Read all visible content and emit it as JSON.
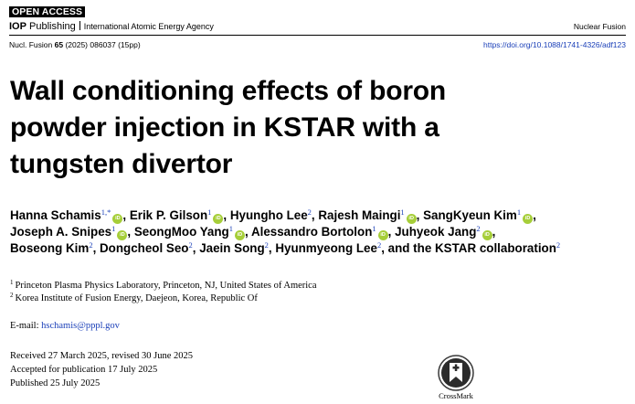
{
  "header": {
    "open_access": "OPEN ACCESS",
    "publisher_bold": "IOP",
    "publisher_rest": " Publishing",
    "agency": "International Atomic Energy Agency",
    "journal": "Nuclear Fusion"
  },
  "citation": {
    "journal_abbrev": "Nucl. Fusion ",
    "volume": "65",
    "rest": " (2025) 086037 (15pp)",
    "doi": "https://doi.org/10.1088/1741-4326/adf123"
  },
  "title_lines": [
    "Wall conditioning effects of boron",
    "powder injection in KSTAR with a",
    "tungsten divertor"
  ],
  "authors": [
    {
      "name": "Hanna Schamis",
      "aff": "1,*",
      "orcid": true
    },
    {
      "name": "Erik P. Gilson",
      "aff": "1",
      "orcid": true
    },
    {
      "name": "Hyungho Lee",
      "aff": "2",
      "orcid": false
    },
    {
      "name": "Rajesh Maingi",
      "aff": "1",
      "orcid": true
    },
    {
      "name": "SangKyeun Kim",
      "aff": "1",
      "orcid": true
    },
    {
      "name": "Joseph A. Snipes",
      "aff": "1",
      "orcid": true
    },
    {
      "name": "SeongMoo Yang",
      "aff": "1",
      "orcid": true
    },
    {
      "name": "Alessandro Bortolon",
      "aff": "1",
      "orcid": true
    },
    {
      "name": "Juhyeok Jang",
      "aff": "2",
      "orcid": true
    },
    {
      "name": "Boseong Kim",
      "aff": "2",
      "orcid": false
    },
    {
      "name": "Dongcheol Seo",
      "aff": "2",
      "orcid": false
    },
    {
      "name": "Jaein Song",
      "aff": "2",
      "orcid": false
    },
    {
      "name": "Hyunmyeong Lee",
      "aff": "2",
      "orcid": false
    },
    {
      "name": "and the KSTAR collaboration",
      "aff": "2",
      "orcid": false
    }
  ],
  "author_line_breaks": [
    4,
    8,
    13
  ],
  "orcid_label": "iD",
  "affiliations": [
    {
      "num": "1",
      "text": "Princeton Plasma Physics Laboratory, Princeton, NJ, United States of America"
    },
    {
      "num": "2",
      "text": "Korea Institute of Fusion Energy, Daejeon, Korea, Republic Of"
    }
  ],
  "email": {
    "label": "E-mail: ",
    "address": "hschamis@pppl.gov"
  },
  "dates": [
    "Received 27 March 2025, revised 30 June 2025",
    "Accepted for publication 17 July 2025",
    "Published 25 July 2025"
  ],
  "crossmark_label": "CrossMark",
  "colors": {
    "link": "#1a3fb8",
    "orcid": "#a6ce39"
  }
}
